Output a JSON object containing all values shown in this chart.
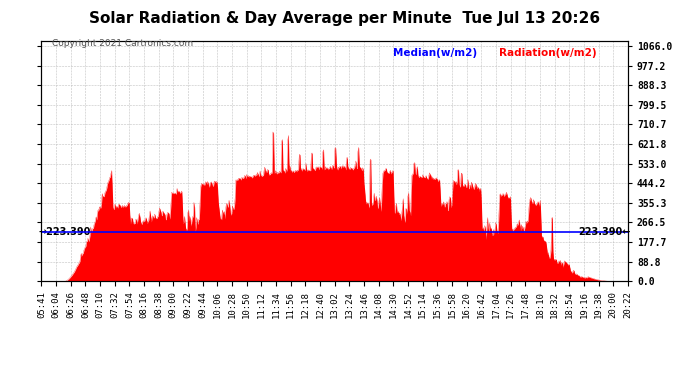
{
  "title": "Solar Radiation & Day Average per Minute  Tue Jul 13 20:26",
  "copyright": "Copyright 2021 Cartronics.com",
  "legend_median": "Median(w/m2)",
  "legend_radiation": "Radiation(w/m2)",
  "median_value": 223.39,
  "ymax": 1066.0,
  "ymin": 0.0,
  "yticks": [
    0.0,
    88.8,
    177.7,
    266.5,
    355.3,
    444.2,
    533.0,
    621.8,
    710.7,
    799.5,
    888.3,
    977.2,
    1066.0
  ],
  "right_yticks_labels": [
    "0.0",
    "88.8",
    "177.7",
    "266.5",
    "355.3",
    "444.2",
    "533.0",
    "621.8",
    "710.7",
    "799.5",
    "888.3",
    "977.2",
    "1066.0"
  ],
  "fill_color": "#FF0000",
  "line_color": "#FF0000",
  "median_color": "#0000FF",
  "background_color": "#FFFFFF",
  "grid_color": "#BBBBBB",
  "title_fontsize": 11,
  "tick_fontsize": 6.5,
  "x_tick_labels": [
    "05:41",
    "06:04",
    "06:26",
    "06:48",
    "07:10",
    "07:32",
    "07:54",
    "08:16",
    "08:38",
    "09:00",
    "09:22",
    "09:44",
    "10:06",
    "10:28",
    "10:50",
    "11:12",
    "11:34",
    "11:56",
    "12:18",
    "12:40",
    "13:02",
    "13:24",
    "13:46",
    "14:08",
    "14:30",
    "14:52",
    "15:14",
    "15:36",
    "15:58",
    "16:20",
    "16:42",
    "17:04",
    "17:26",
    "17:48",
    "18:10",
    "18:32",
    "18:54",
    "19:16",
    "19:38",
    "20:00",
    "20:22"
  ],
  "left_label": "223.390",
  "right_label": "223.390"
}
